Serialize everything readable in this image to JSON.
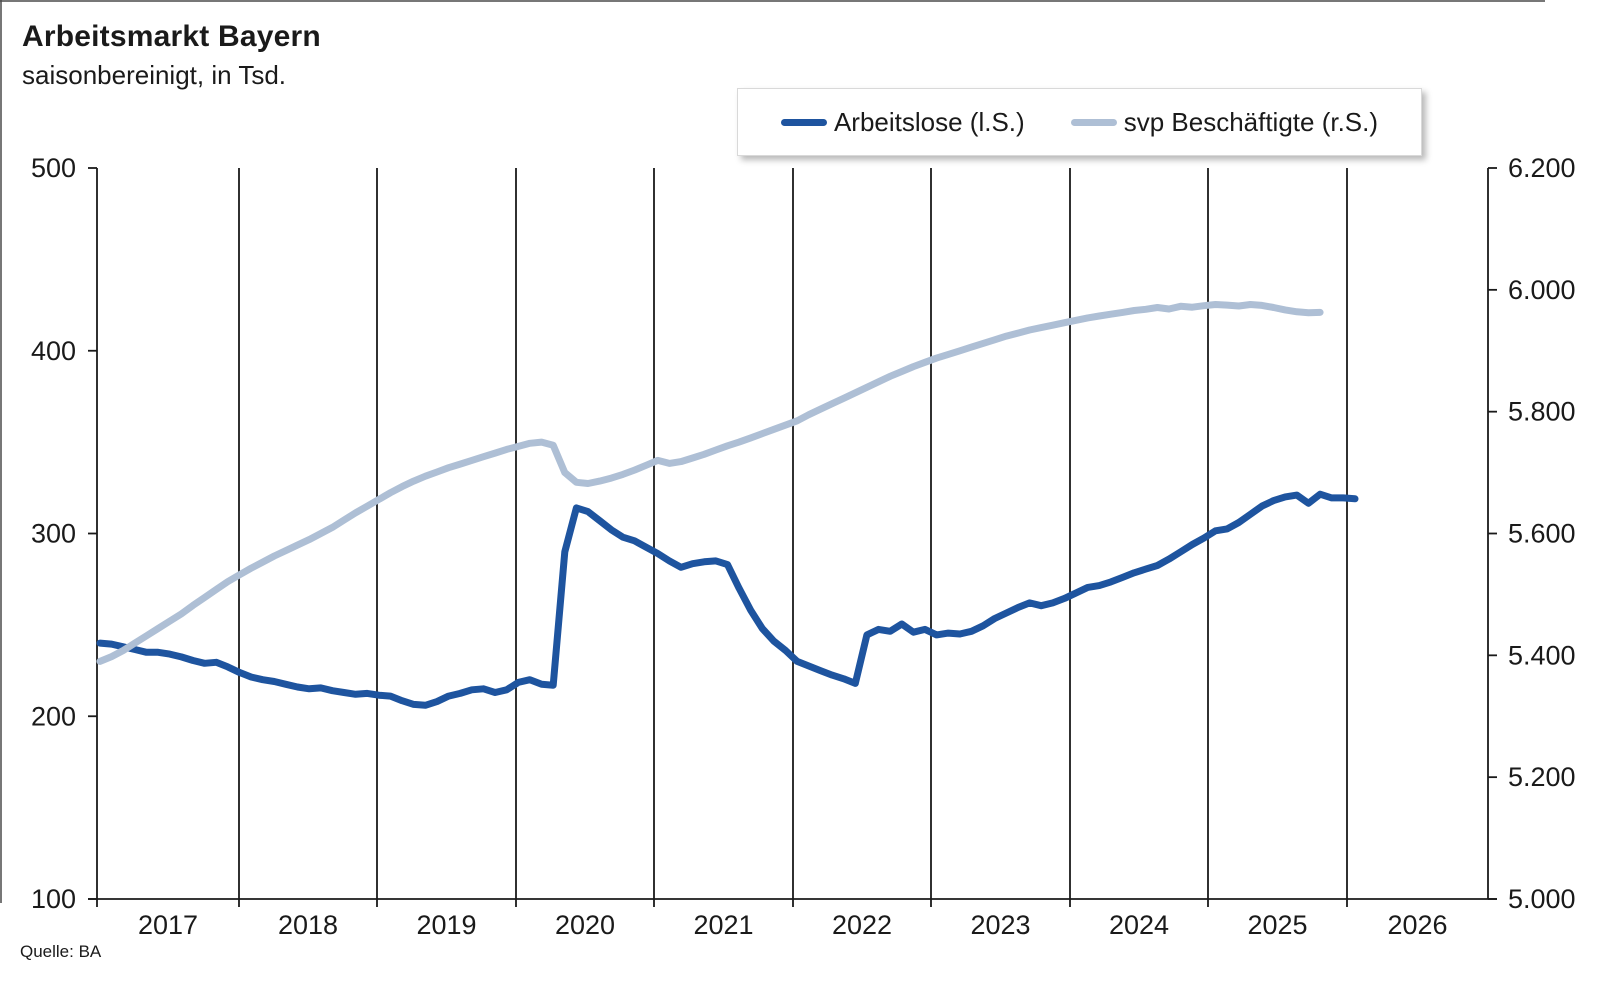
{
  "page": {
    "title": "Arbeitsmarkt Bayern",
    "subtitle": "saisonbereinigt, in Tsd.",
    "source": "Quelle: BA"
  },
  "legend": [
    {
      "label": "Arbeitslose (l.S.)",
      "color": "#1e549f"
    },
    {
      "label": "svp Beschäftigte (r.S.)",
      "color": "#aebfd5"
    }
  ],
  "chart_data": {
    "type": "line",
    "title": "Arbeitsmarkt Bayern",
    "subtitle": "saisonbereinigt, in Tsd.",
    "source": "Quelle: BA",
    "grid": "vertical-year-boundaries",
    "legend_position": "top-right",
    "x_tick_labels": [
      "2017",
      "2018",
      "2019",
      "2020",
      "2021",
      "2022",
      "2023",
      "2024",
      "2025",
      "2026"
    ],
    "left_axis": {
      "min": 100,
      "max": 500,
      "ticks": [
        500,
        400,
        300,
        200,
        100
      ]
    },
    "right_axis": {
      "min": 5000,
      "max": 6200,
      "ticks": [
        6200,
        6000,
        5800,
        5600,
        5400,
        5200,
        5000
      ],
      "tick_labels": [
        "6.200",
        "6.000",
        "5.800",
        "5.600",
        "5.400",
        "5.200",
        "5.000"
      ]
    },
    "series": [
      {
        "name": "Arbeitslose (l.S.)",
        "axis": "left",
        "color": "#1e549f",
        "frequency": "monthly",
        "start": "2016-12",
        "values": [
          240,
          239.5,
          238,
          236.5,
          235,
          235,
          234,
          232.5,
          230.5,
          229,
          229.5,
          227,
          224,
          221.5,
          220,
          219,
          217.5,
          216,
          215,
          215.5,
          214,
          213,
          212,
          212.5,
          211.5,
          211,
          208.5,
          206.5,
          206,
          208,
          211,
          212.5,
          214.5,
          215,
          213,
          214.5,
          218.5,
          220,
          217.5,
          217,
          290,
          314,
          312,
          307,
          302,
          298,
          296,
          292.5,
          289,
          285,
          281.5,
          283.5,
          284.5,
          285,
          283,
          270,
          258,
          248,
          241,
          236,
          230,
          227.5,
          225,
          222.5,
          220.5,
          218,
          244.5,
          247.5,
          246.5,
          250.5,
          246,
          247.5,
          244.5,
          245.5,
          245,
          246.5,
          249.5,
          253.5,
          256.5,
          259.5,
          262,
          260.5,
          262,
          264.5,
          267.5,
          270.5,
          271.5,
          273.5,
          276,
          278.5,
          280.5,
          282.5,
          286,
          290,
          294,
          297.5,
          301.5,
          302.5,
          306,
          310.5,
          315,
          318,
          320,
          321,
          316.5,
          321.5,
          319.5,
          319.5,
          319
        ]
      },
      {
        "name": "svp Beschäftigte (r.S.)",
        "axis": "right",
        "color": "#aebfd5",
        "frequency": "monthly",
        "start": "2016-12",
        "values": [
          5390,
          5398,
          5408,
          5420,
          5432,
          5444,
          5456,
          5468,
          5482,
          5495,
          5508,
          5521,
          5532,
          5543,
          5553,
          5563,
          5572,
          5581,
          5590,
          5600,
          5610,
          5622,
          5634,
          5645,
          5656,
          5667,
          5677,
          5686,
          5694,
          5701,
          5708,
          5714,
          5720,
          5726,
          5732,
          5738,
          5743,
          5748,
          5750,
          5745,
          5700,
          5684,
          5682,
          5686,
          5691,
          5697,
          5704,
          5712,
          5720,
          5715,
          5718,
          5724,
          5730,
          5737,
          5744,
          5750,
          5757,
          5764,
          5771,
          5778,
          5785,
          5795,
          5804,
          5813,
          5822,
          5831,
          5840,
          5849,
          5858,
          5866,
          5874,
          5881,
          5888,
          5894,
          5900,
          5906,
          5912,
          5918,
          5924,
          5929,
          5934,
          5938,
          5942,
          5946,
          5950,
          5954,
          5957,
          5960,
          5963,
          5966,
          5968,
          5971,
          5968.5,
          5973,
          5971.5,
          5974,
          5976,
          5975,
          5973.5,
          5976,
          5974.5,
          5971,
          5967,
          5964,
          5962.5,
          5963
        ]
      }
    ]
  }
}
